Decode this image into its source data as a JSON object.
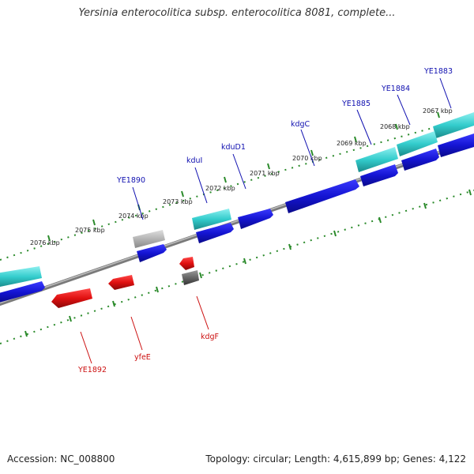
{
  "title": "Yersinia enterocolitica subsp. enterocolitica 8081, complete...",
  "footer": {
    "accession": "Accession: NC_008800",
    "topology": "Topology: circular; Length: 4,615,899 bp; Genes: 4,122"
  },
  "colors": {
    "cds_forward": "#1414d2",
    "cds_reverse": "#e01010",
    "gene_forward": "#33cccc",
    "gene_reverse_gray": "#666666",
    "gene_forward_gray": "#b4b4b4",
    "ticks": "#2a8a2a",
    "backbone": "#8c8c8c",
    "label_forward": "#1010b0",
    "label_reverse": "#cc1010"
  },
  "scale_labels": [
    "2067 kbp",
    "2068 kbp",
    "2069 kbp",
    "2070 kbp",
    "2071 kbp",
    "2072 kbp",
    "2073 kbp",
    "2074 kbp",
    "2075 kbp",
    "2076 kbp"
  ],
  "forward_genes": [
    "YE1883",
    "YE1884",
    "YE1885",
    "kdgC",
    "kduD1",
    "kduI",
    "YE1890"
  ],
  "reverse_genes": [
    "kdgF",
    "yfeE",
    "YE1892"
  ]
}
